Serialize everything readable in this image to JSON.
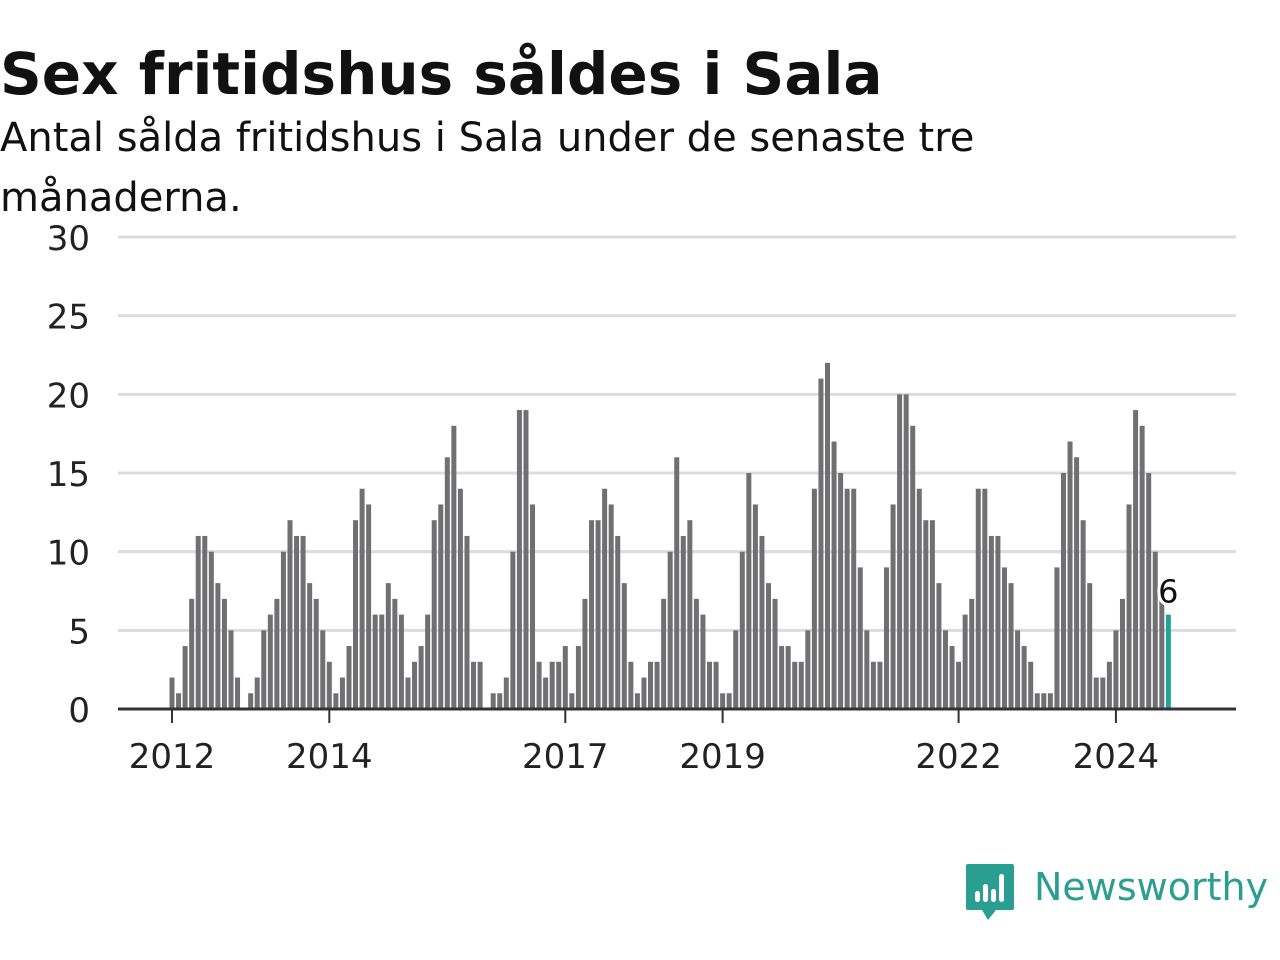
{
  "title": "Sex fritidshus såldes i Sala",
  "subtitle": "Antal sålda fritidshus i Sala under de senaste tre månaderna.",
  "brand": "Newsworthy",
  "colors": {
    "bar": "#707073",
    "highlight": "#1fa39a",
    "grid": "#dcdcdc",
    "axis": "#333333",
    "text": "#222222"
  },
  "chart_data": {
    "type": "bar",
    "title": "Sex fritidshus såldes i Sala",
    "subtitle": "Antal sålda fritidshus i Sala under de senaste tre månaderna.",
    "x_unit": "month",
    "start": "2012-01",
    "ylim": [
      0,
      30
    ],
    "y_ticks": [
      "0",
      "5",
      "10",
      "15",
      "20",
      "25",
      "30"
    ],
    "x_ticks": [
      {
        "label": "2012",
        "date": "2012-01"
      },
      {
        "label": "2014",
        "date": "2014-01"
      },
      {
        "label": "2017",
        "date": "2017-01"
      },
      {
        "label": "2019",
        "date": "2019-01"
      },
      {
        "label": "2022",
        "date": "2022-01"
      },
      {
        "label": "2024",
        "date": "2024-01"
      }
    ],
    "grid": true,
    "values": [
      2,
      1,
      4,
      7,
      11,
      11,
      10,
      8,
      7,
      5,
      2,
      0,
      1,
      2,
      5,
      6,
      7,
      10,
      12,
      11,
      11,
      8,
      7,
      5,
      3,
      1,
      2,
      4,
      12,
      14,
      13,
      6,
      6,
      8,
      7,
      6,
      2,
      3,
      4,
      6,
      12,
      13,
      16,
      18,
      14,
      11,
      3,
      3,
      0,
      1,
      1,
      2,
      10,
      19,
      19,
      13,
      3,
      2,
      3,
      3,
      4,
      1,
      4,
      7,
      12,
      12,
      14,
      13,
      11,
      8,
      3,
      1,
      2,
      3,
      3,
      7,
      10,
      16,
      11,
      12,
      7,
      6,
      3,
      3,
      1,
      1,
      5,
      10,
      15,
      13,
      11,
      8,
      7,
      4,
      4,
      3,
      3,
      5,
      14,
      21,
      22,
      17,
      15,
      14,
      14,
      9,
      5,
      3,
      3,
      9,
      13,
      20,
      20,
      18,
      14,
      12,
      12,
      8,
      5,
      4,
      3,
      6,
      7,
      14,
      14,
      11,
      11,
      9,
      8,
      5,
      4,
      3,
      1,
      1,
      1,
      9,
      15,
      17,
      16,
      12,
      8,
      2,
      2,
      3,
      5,
      7,
      13,
      19,
      18,
      15,
      10,
      7,
      6
    ],
    "highlight": {
      "label": "6",
      "value": 6
    }
  }
}
